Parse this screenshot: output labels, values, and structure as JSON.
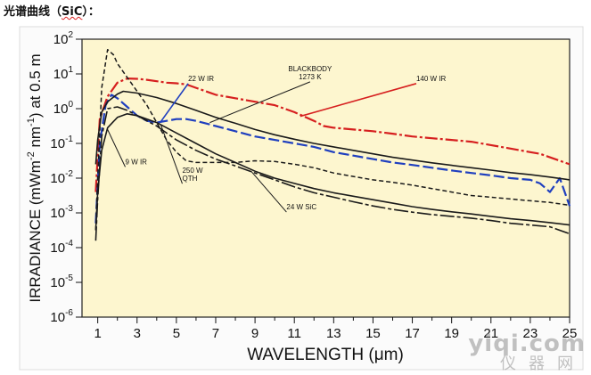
{
  "heading": {
    "prefix": "光谱曲线（",
    "spell_word": "SiC",
    "suffix": "）："
  },
  "watermark": {
    "top": "yiqi.com",
    "bottom": "仪器网"
  },
  "colors": {
    "background": "#ffffff",
    "plot_fill": "#fdf6cf",
    "plot_border": "#222222",
    "black_series": "#1a1a1a",
    "blue_series": "#1f3fbf",
    "red_series": "#d61f1f"
  },
  "chart_data": {
    "type": "line",
    "title": "",
    "xlabel": "WAVELENGTH (μm)",
    "ylabel_parts": {
      "pre": "IRRADIANCE (mWm",
      "exp1": "-2",
      "mid": " nm",
      "exp2": "-1",
      "post": ") at 0.5 m"
    },
    "x_scale": "linear",
    "y_scale": "log",
    "xlim": [
      0.2,
      25
    ],
    "ylim": [
      -6,
      2
    ],
    "x_ticks": [
      1,
      3,
      5,
      7,
      9,
      11,
      13,
      15,
      17,
      19,
      21,
      23,
      25
    ],
    "x_tick_labels": [
      "1",
      "3",
      "5",
      "7",
      "9",
      "11",
      "13",
      "15",
      "17",
      "19",
      "21",
      "23",
      "25"
    ],
    "y_ticks": [
      2,
      1,
      0,
      -1,
      -2,
      -3,
      -4,
      -5,
      -6
    ],
    "y_tick_labels": [
      {
        "base": "10",
        "exp": "2"
      },
      {
        "base": "10",
        "exp": "1"
      },
      {
        "base": "10",
        "exp": "0"
      },
      {
        "base": "10",
        "exp": "-1"
      },
      {
        "base": "10",
        "exp": "-2"
      },
      {
        "base": "10",
        "exp": "-3"
      },
      {
        "base": "10",
        "exp": "-4"
      },
      {
        "base": "10",
        "exp": "-5"
      },
      {
        "base": "10",
        "exp": "-6"
      }
    ],
    "grid": false,
    "legend": "none",
    "series": [
      {
        "name": "140 W IR",
        "color": "#d61f1f",
        "dash": "14 3 3 3",
        "width": 2.2,
        "points": [
          [
            0.9,
            -2.4
          ],
          [
            1.1,
            -0.3
          ],
          [
            1.5,
            0.35
          ],
          [
            2.0,
            0.75
          ],
          [
            2.5,
            0.87
          ],
          [
            3.0,
            0.86
          ],
          [
            3.5,
            0.83
          ],
          [
            4.0,
            0.79
          ],
          [
            4.5,
            0.75
          ],
          [
            5.0,
            0.73
          ],
          [
            5.5,
            0.7
          ],
          [
            6.0,
            0.6
          ],
          [
            6.5,
            0.5
          ],
          [
            7.0,
            0.4
          ],
          [
            8.0,
            0.3
          ],
          [
            9.0,
            0.2
          ],
          [
            10.0,
            0.1
          ],
          [
            11.0,
            -0.1
          ],
          [
            12.0,
            -0.35
          ],
          [
            12.5,
            -0.5
          ],
          [
            13.0,
            -0.55
          ],
          [
            14.0,
            -0.6
          ],
          [
            15.0,
            -0.65
          ],
          [
            16.0,
            -0.72
          ],
          [
            17.0,
            -0.8
          ],
          [
            18.0,
            -0.85
          ],
          [
            19.0,
            -0.9
          ],
          [
            20.0,
            -0.95
          ],
          [
            21.0,
            -1.05
          ],
          [
            22.0,
            -1.15
          ],
          [
            23.0,
            -1.25
          ],
          [
            23.5,
            -1.3
          ],
          [
            24.5,
            -1.5
          ],
          [
            25.0,
            -1.6
          ]
        ]
      },
      {
        "name": "22 W IR",
        "color": "#1f3fbf",
        "dash": "12 4",
        "width": 2.2,
        "points": [
          [
            0.9,
            -3.3
          ],
          [
            1.1,
            -1.0
          ],
          [
            1.4,
            0.1
          ],
          [
            1.7,
            0.4
          ],
          [
            2.0,
            0.3
          ],
          [
            2.5,
            0.05
          ],
          [
            3.0,
            -0.2
          ],
          [
            3.5,
            -0.35
          ],
          [
            4.0,
            -0.4
          ],
          [
            4.5,
            -0.35
          ],
          [
            5.0,
            -0.3
          ],
          [
            5.5,
            -0.3
          ],
          [
            6.0,
            -0.35
          ],
          [
            7.0,
            -0.5
          ],
          [
            8.0,
            -0.65
          ],
          [
            9.0,
            -0.8
          ],
          [
            10.0,
            -0.9
          ],
          [
            11.0,
            -1.0
          ],
          [
            12.0,
            -1.1
          ],
          [
            13.0,
            -1.25
          ],
          [
            14.0,
            -1.35
          ],
          [
            15.0,
            -1.45
          ],
          [
            16.0,
            -1.55
          ],
          [
            17.0,
            -1.62
          ],
          [
            18.0,
            -1.7
          ],
          [
            19.0,
            -1.78
          ],
          [
            20.0,
            -1.85
          ],
          [
            21.0,
            -1.92
          ],
          [
            22.0,
            -2.0
          ],
          [
            23.0,
            -2.05
          ],
          [
            23.5,
            -2.15
          ],
          [
            24.0,
            -2.4
          ],
          [
            24.5,
            -2.0
          ],
          [
            25.0,
            -2.8
          ]
        ]
      },
      {
        "name": "BLACKBODY 1273 K",
        "color": "#1a1a1a",
        "dash": "",
        "width": 1.6,
        "points": [
          [
            0.9,
            -1.6
          ],
          [
            1.0,
            -0.9
          ],
          [
            1.2,
            -0.1
          ],
          [
            1.5,
            0.2
          ],
          [
            2.0,
            0.42
          ],
          [
            2.3,
            0.5
          ],
          [
            3.0,
            0.45
          ],
          [
            4.0,
            0.32
          ],
          [
            5.0,
            0.15
          ],
          [
            6.0,
            -0.05
          ],
          [
            7.0,
            -0.25
          ],
          [
            8.0,
            -0.42
          ],
          [
            9.0,
            -0.6
          ],
          [
            10.0,
            -0.75
          ],
          [
            11.0,
            -0.88
          ],
          [
            12.0,
            -1.0
          ],
          [
            13.0,
            -1.1
          ],
          [
            14.0,
            -1.2
          ],
          [
            15.0,
            -1.3
          ],
          [
            16.0,
            -1.4
          ],
          [
            17.0,
            -1.48
          ],
          [
            18.0,
            -1.56
          ],
          [
            19.0,
            -1.63
          ],
          [
            20.0,
            -1.7
          ],
          [
            21.0,
            -1.77
          ],
          [
            22.0,
            -1.84
          ],
          [
            23.0,
            -1.9
          ],
          [
            24.0,
            -1.97
          ],
          [
            25.0,
            -2.05
          ]
        ]
      },
      {
        "name": "250 W QTH",
        "color": "#1a1a1a",
        "dash": "5 3",
        "width": 1.5,
        "points": [
          [
            0.9,
            -3.5
          ],
          [
            1.0,
            -2.0
          ],
          [
            1.2,
            0.6
          ],
          [
            1.5,
            1.7
          ],
          [
            1.8,
            1.55
          ],
          [
            2.0,
            1.3
          ],
          [
            2.5,
            0.9
          ],
          [
            3.0,
            0.5
          ],
          [
            3.5,
            0.1
          ],
          [
            4.0,
            -0.4
          ],
          [
            4.5,
            -0.9
          ],
          [
            5.0,
            -1.25
          ],
          [
            5.5,
            -1.5
          ],
          [
            6.0,
            -1.55
          ],
          [
            7.0,
            -1.55
          ],
          [
            8.0,
            -1.55
          ],
          [
            9.0,
            -1.5
          ],
          [
            10.0,
            -1.52
          ],
          [
            11.0,
            -1.6
          ],
          [
            12.0,
            -1.7
          ],
          [
            13.0,
            -1.85
          ],
          [
            14.0,
            -1.95
          ],
          [
            15.0,
            -2.05
          ],
          [
            16.0,
            -2.12
          ],
          [
            17.0,
            -2.2
          ],
          [
            18.0,
            -2.3
          ],
          [
            19.0,
            -2.4
          ],
          [
            20.0,
            -2.5
          ],
          [
            21.0,
            -2.55
          ],
          [
            22.0,
            -2.6
          ],
          [
            23.0,
            -2.65
          ],
          [
            24.0,
            -2.7
          ],
          [
            25.0,
            -2.78
          ]
        ]
      },
      {
        "name": "24 W SiC",
        "color": "#1a1a1a",
        "dash": "16 3 4 3",
        "width": 1.6,
        "points": [
          [
            0.9,
            -3.8
          ],
          [
            1.0,
            -2.6
          ],
          [
            1.2,
            -0.8
          ],
          [
            1.5,
            0.0
          ],
          [
            2.0,
            0.05
          ],
          [
            2.5,
            -0.05
          ],
          [
            3.0,
            -0.2
          ],
          [
            4.0,
            -0.5
          ],
          [
            5.0,
            -0.9
          ],
          [
            6.0,
            -1.2
          ],
          [
            7.0,
            -1.45
          ],
          [
            8.0,
            -1.65
          ],
          [
            9.0,
            -1.85
          ],
          [
            10.0,
            -2.05
          ],
          [
            11.0,
            -2.25
          ],
          [
            12.0,
            -2.42
          ],
          [
            13.0,
            -2.55
          ],
          [
            14.0,
            -2.68
          ],
          [
            15.0,
            -2.8
          ],
          [
            16.0,
            -2.9
          ],
          [
            17.0,
            -2.98
          ],
          [
            18.0,
            -3.05
          ],
          [
            19.0,
            -3.1
          ],
          [
            20.0,
            -3.15
          ],
          [
            21.0,
            -3.22
          ],
          [
            22.0,
            -3.3
          ],
          [
            23.0,
            -3.35
          ],
          [
            24.0,
            -3.4
          ],
          [
            25.0,
            -3.6
          ]
        ]
      },
      {
        "name": "9 W IR",
        "color": "#1a1a1a",
        "dash": "",
        "width": 1.6,
        "points": [
          [
            0.9,
            -3.5
          ],
          [
            1.0,
            -2.4
          ],
          [
            1.2,
            -1.2
          ],
          [
            1.5,
            -0.55
          ],
          [
            2.0,
            -0.25
          ],
          [
            2.5,
            -0.15
          ],
          [
            3.0,
            -0.2
          ],
          [
            4.0,
            -0.4
          ],
          [
            5.0,
            -0.7
          ],
          [
            6.0,
            -1.0
          ],
          [
            7.0,
            -1.3
          ],
          [
            8.0,
            -1.55
          ],
          [
            9.0,
            -1.8
          ],
          [
            10.0,
            -2.0
          ],
          [
            11.0,
            -2.15
          ],
          [
            12.0,
            -2.3
          ],
          [
            13.0,
            -2.42
          ],
          [
            14.0,
            -2.52
          ],
          [
            15.0,
            -2.62
          ],
          [
            16.0,
            -2.72
          ],
          [
            17.0,
            -2.82
          ],
          [
            18.0,
            -2.9
          ],
          [
            19.0,
            -2.97
          ],
          [
            20.0,
            -3.03
          ],
          [
            21.0,
            -3.1
          ],
          [
            22.0,
            -3.17
          ],
          [
            23.0,
            -3.22
          ],
          [
            24.0,
            -3.28
          ],
          [
            25.0,
            -3.35
          ]
        ]
      }
    ],
    "annotations": [
      {
        "lines": [
          "BLACKBODY",
          "1273 K"
        ],
        "color": "#1a1a1a",
        "label_xy": [
          11.8,
          1.08
        ],
        "arrow_to": [
          6.7,
          -0.4
        ],
        "anchor": "middle"
      },
      {
        "lines": [
          "22 W IR"
        ],
        "color": "#1f3fbf",
        "label_xy": [
          5.6,
          0.8
        ],
        "arrow_to": [
          4.2,
          -0.38
        ],
        "anchor": "start"
      },
      {
        "lines": [
          "140 W IR"
        ],
        "color": "#d61f1f",
        "label_xy": [
          17.2,
          0.8
        ],
        "arrow_to": [
          11.3,
          -0.22
        ],
        "anchor": "start"
      },
      {
        "lines": [
          "9 W IR"
        ],
        "color": "#1a1a1a",
        "label_xy": [
          2.4,
          -1.6
        ],
        "arrow_to": [
          1.5,
          -0.6
        ],
        "anchor": "start"
      },
      {
        "lines": [
          "250 W",
          "QTH"
        ],
        "color": "#1a1a1a",
        "label_xy": [
          5.3,
          -1.85
        ],
        "arrow_to": [
          4.2,
          -0.45
        ],
        "anchor": "start"
      },
      {
        "lines": [
          "24 W SiC"
        ],
        "color": "#1a1a1a",
        "label_xy": [
          10.6,
          -2.9
        ],
        "arrow_to": [
          8.8,
          -1.8
        ],
        "anchor": "start"
      }
    ]
  }
}
